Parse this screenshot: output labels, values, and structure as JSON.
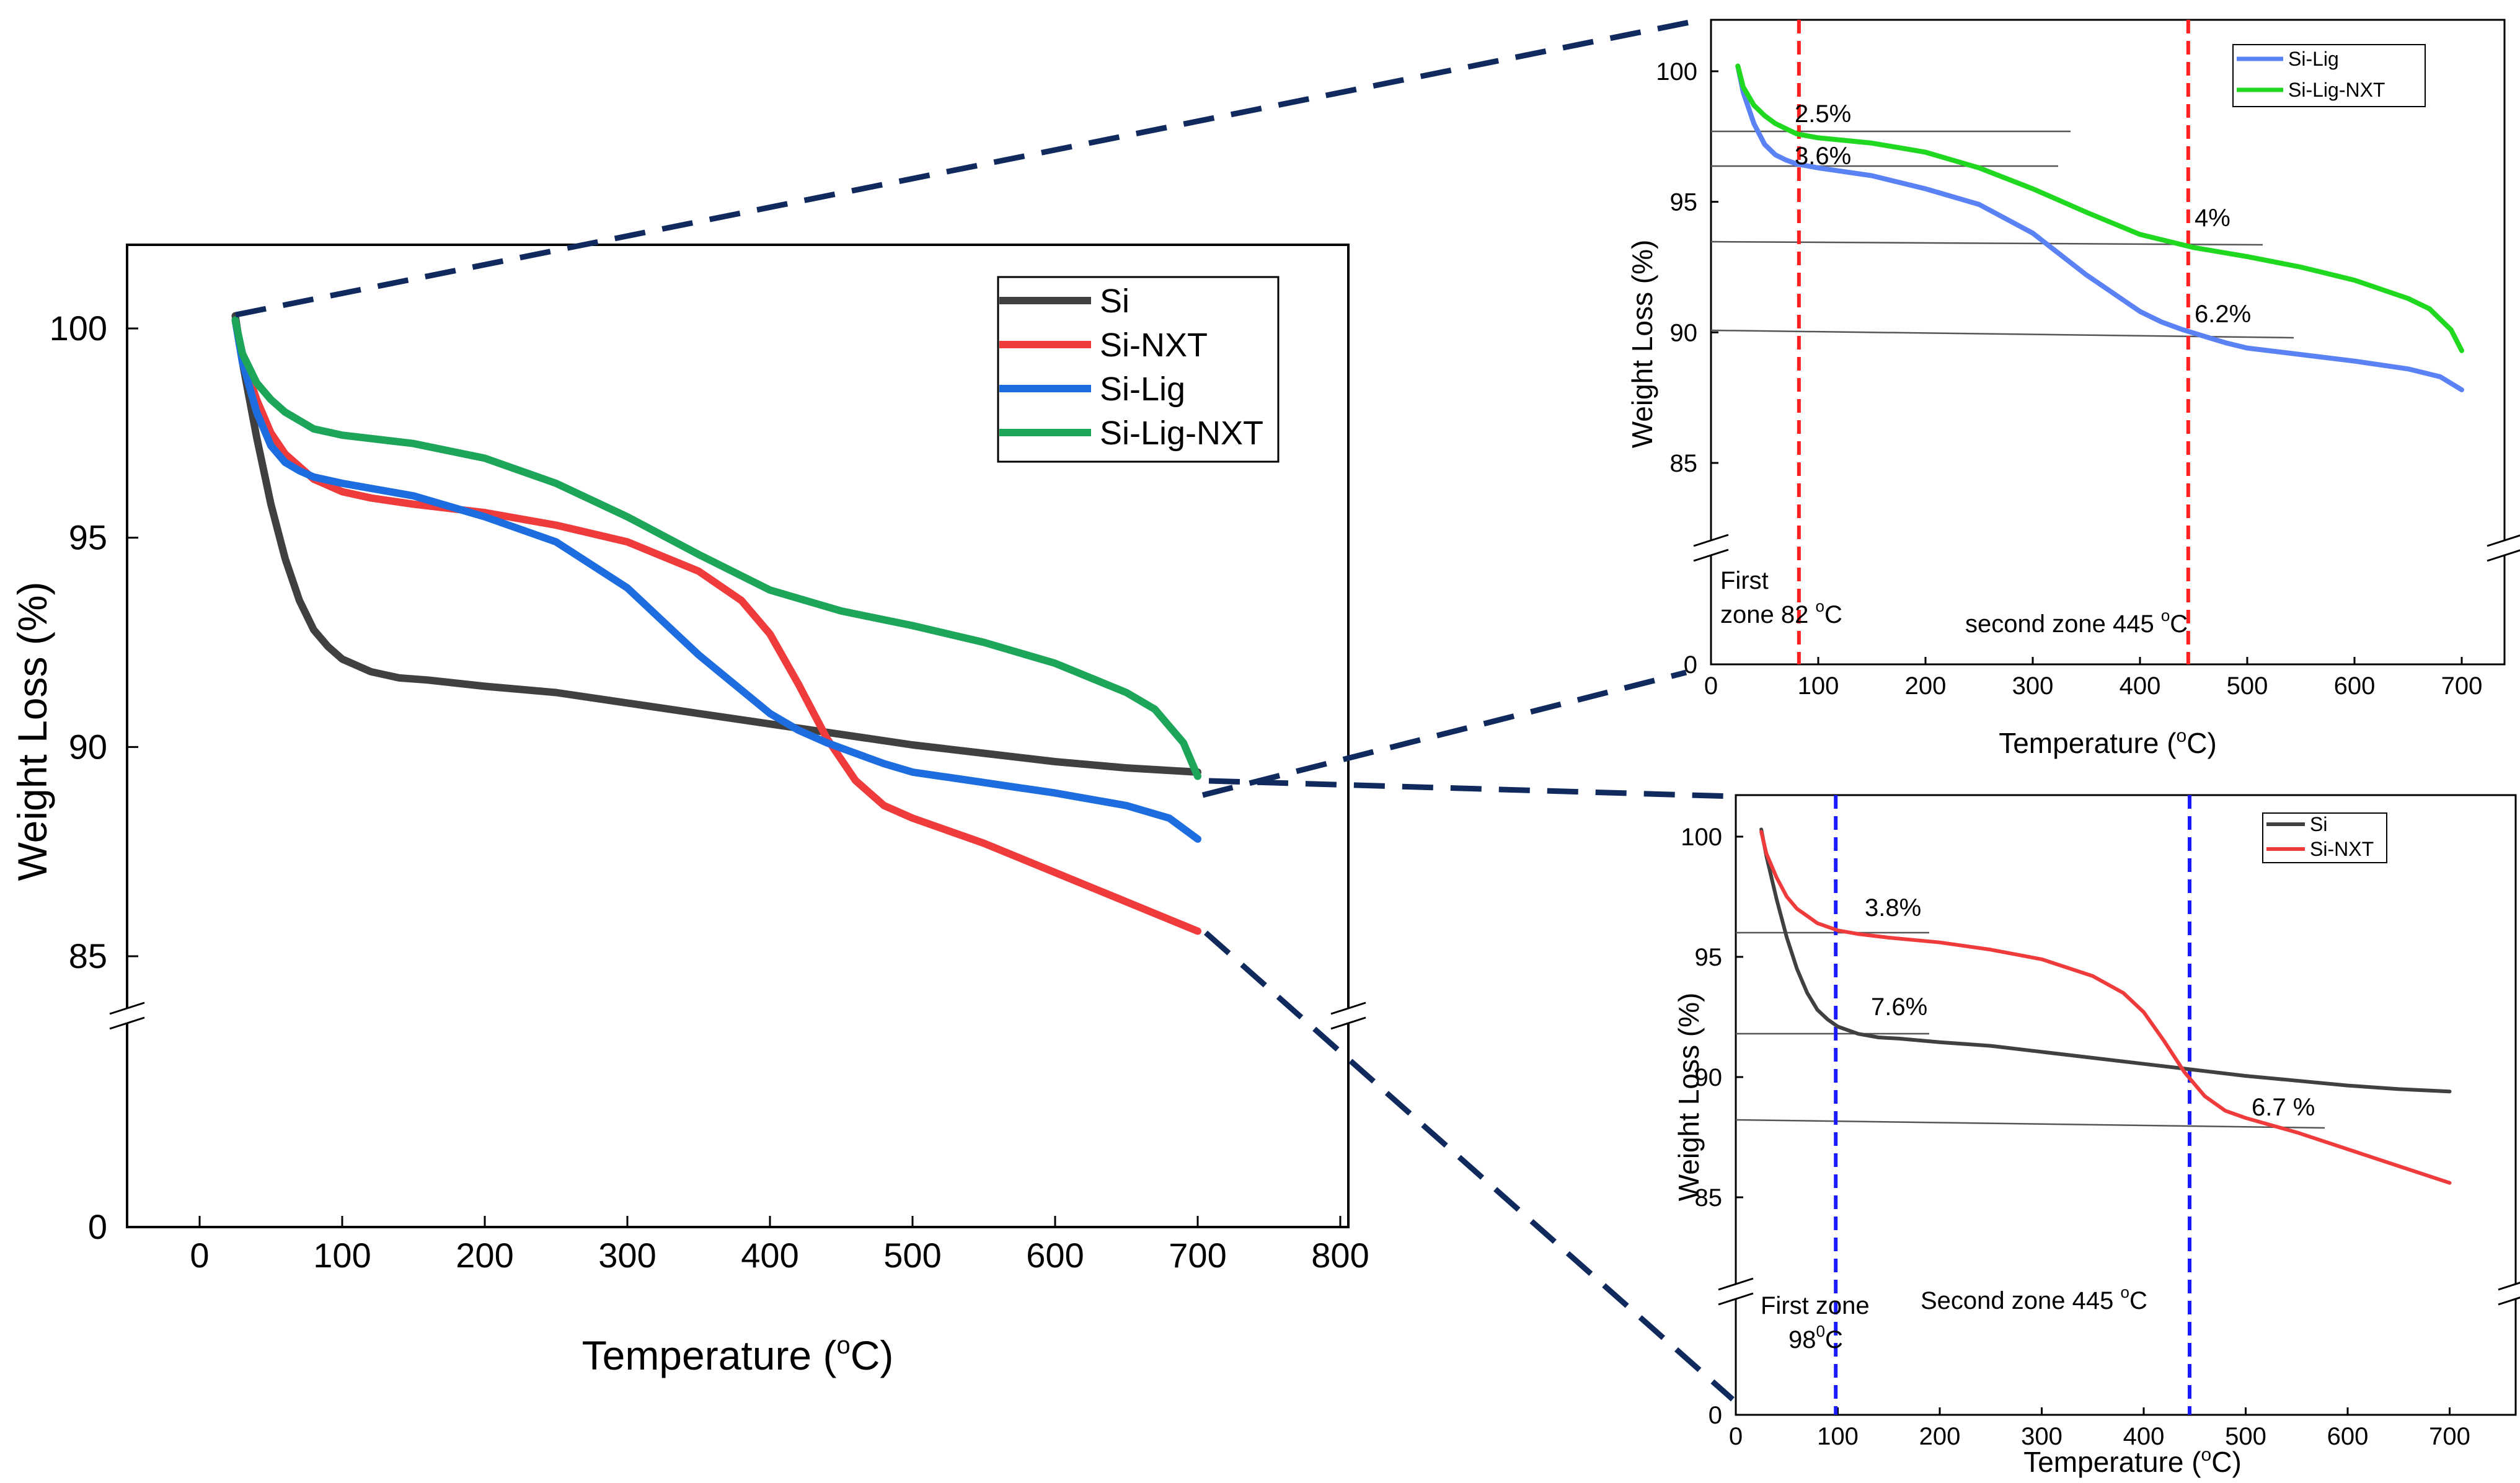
{
  "chart_data": [
    {
      "id": "main",
      "type": "line",
      "xlabel": "Temperature (°C)",
      "ylabel": "Weight Loss (%)",
      "xlim": [
        -50,
        800
      ],
      "xticks": [
        0,
        100,
        200,
        300,
        400,
        500,
        600,
        700,
        800
      ],
      "yticks": [
        0,
        85,
        90,
        95,
        100
      ],
      "axis_break": "between 0 and 85",
      "legend_position": "top-right",
      "series": [
        {
          "name": "Si",
          "color": "#404040",
          "x": [
            25,
            30,
            40,
            50,
            60,
            70,
            80,
            90,
            100,
            120,
            140,
            160,
            200,
            250,
            300,
            350,
            400,
            450,
            500,
            550,
            600,
            650,
            700
          ],
          "y": [
            100.3,
            99.2,
            97.4,
            95.8,
            94.5,
            93.5,
            92.8,
            92.4,
            92.1,
            91.8,
            91.65,
            91.6,
            91.45,
            91.3,
            91.05,
            90.8,
            90.55,
            90.3,
            90.05,
            89.85,
            89.65,
            89.5,
            89.4
          ]
        },
        {
          "name": "Si-NXT",
          "color": "#ef3b3b",
          "x": [
            25,
            30,
            40,
            50,
            60,
            70,
            80,
            100,
            120,
            150,
            200,
            250,
            300,
            350,
            380,
            400,
            420,
            440,
            460,
            480,
            500,
            550,
            600,
            650,
            700
          ],
          "y": [
            100.2,
            99.3,
            98.3,
            97.5,
            97.0,
            96.7,
            96.4,
            96.1,
            95.95,
            95.8,
            95.6,
            95.3,
            94.9,
            94.2,
            93.5,
            92.7,
            91.5,
            90.2,
            89.2,
            88.6,
            88.3,
            87.7,
            87.0,
            86.3,
            85.6
          ]
        },
        {
          "name": "Si-Lig",
          "color": "#1e6de0",
          "x": [
            25,
            30,
            40,
            50,
            60,
            70,
            80,
            100,
            150,
            200,
            250,
            300,
            350,
            400,
            420,
            440,
            460,
            480,
            500,
            550,
            600,
            650,
            680,
            700
          ],
          "y": [
            100.2,
            99.2,
            98.0,
            97.2,
            96.8,
            96.6,
            96.45,
            96.3,
            96.0,
            95.5,
            94.9,
            93.8,
            92.2,
            90.8,
            90.4,
            90.1,
            89.85,
            89.6,
            89.4,
            89.15,
            88.9,
            88.6,
            88.3,
            87.8
          ]
        },
        {
          "name": "Si-Lig-NXT",
          "color": "#1da65a",
          "x": [
            25,
            30,
            40,
            50,
            60,
            80,
            100,
            150,
            200,
            250,
            300,
            350,
            400,
            450,
            500,
            550,
            600,
            650,
            670,
            690,
            700
          ],
          "y": [
            100.2,
            99.4,
            98.7,
            98.3,
            98.0,
            97.6,
            97.45,
            97.25,
            96.9,
            96.3,
            95.5,
            94.6,
            93.75,
            93.25,
            92.9,
            92.5,
            92.0,
            91.3,
            90.9,
            90.1,
            89.3
          ]
        }
      ]
    },
    {
      "id": "inset-top",
      "type": "line",
      "xlabel": "Temperature (°C)",
      "ylabel": "Weight Loss (%)",
      "xlim": [
        0,
        740
      ],
      "xticks": [
        0,
        100,
        200,
        300,
        400,
        500,
        600,
        700
      ],
      "yticks": [
        0,
        85,
        90,
        95,
        100
      ],
      "axis_break": "between 0 and 85",
      "legend_position": "top-right",
      "series": [
        {
          "name": "Si-Lig",
          "color": "#5b82f5",
          "x": [
            25,
            30,
            40,
            50,
            60,
            70,
            80,
            100,
            150,
            200,
            250,
            300,
            350,
            400,
            420,
            440,
            460,
            480,
            500,
            550,
            600,
            650,
            680,
            700
          ],
          "y": [
            100.2,
            99.2,
            98.0,
            97.2,
            96.8,
            96.6,
            96.45,
            96.3,
            96.0,
            95.5,
            94.9,
            93.8,
            92.2,
            90.8,
            90.4,
            90.1,
            89.85,
            89.6,
            89.4,
            89.15,
            88.9,
            88.6,
            88.3,
            87.8
          ]
        },
        {
          "name": "Si-Lig-NXT",
          "color": "#1fd81f",
          "x": [
            25,
            30,
            40,
            50,
            60,
            80,
            100,
            150,
            200,
            250,
            300,
            350,
            400,
            450,
            500,
            550,
            600,
            650,
            670,
            690,
            700
          ],
          "y": [
            100.2,
            99.4,
            98.7,
            98.3,
            98.0,
            97.6,
            97.45,
            97.25,
            96.9,
            96.3,
            95.5,
            94.6,
            93.75,
            93.25,
            92.9,
            92.5,
            92.0,
            91.3,
            90.9,
            90.1,
            89.3
          ]
        }
      ],
      "vlines": [
        82,
        445
      ],
      "refline_labels": [
        "2.5%",
        "3.6%",
        "4%",
        "6.2%"
      ],
      "zone_labels": {
        "first_line1": "First",
        "first_line2": "zone 82 °C",
        "second": "second zone 445 °C"
      }
    },
    {
      "id": "inset-bottom",
      "type": "line",
      "xlabel": "Temperature (°C)",
      "ylabel": "Weight Loss (%)",
      "xlim": [
        0,
        760
      ],
      "xticks": [
        0,
        100,
        200,
        300,
        400,
        500,
        600,
        700
      ],
      "yticks": [
        0,
        85,
        90,
        95,
        100
      ],
      "axis_break": "between 0 and 85",
      "legend_position": "top-right",
      "series": [
        {
          "name": "Si",
          "color": "#404040",
          "x": [
            25,
            30,
            40,
            50,
            60,
            70,
            80,
            90,
            100,
            120,
            140,
            160,
            200,
            250,
            300,
            350,
            400,
            450,
            500,
            550,
            600,
            650,
            700
          ],
          "y": [
            100.3,
            99.2,
            97.4,
            95.8,
            94.5,
            93.5,
            92.8,
            92.4,
            92.1,
            91.8,
            91.65,
            91.6,
            91.45,
            91.3,
            91.05,
            90.8,
            90.55,
            90.3,
            90.05,
            89.85,
            89.65,
            89.5,
            89.4
          ]
        },
        {
          "name": "Si-NXT",
          "color": "#ef3b3b",
          "x": [
            25,
            30,
            40,
            50,
            60,
            70,
            80,
            100,
            120,
            150,
            200,
            250,
            300,
            350,
            380,
            400,
            420,
            440,
            460,
            480,
            500,
            550,
            600,
            650,
            700
          ],
          "y": [
            100.2,
            99.3,
            98.3,
            97.5,
            97.0,
            96.7,
            96.4,
            96.1,
            95.95,
            95.8,
            95.6,
            95.3,
            94.9,
            94.2,
            93.5,
            92.7,
            91.5,
            90.2,
            89.2,
            88.6,
            88.3,
            87.7,
            87.0,
            86.3,
            85.6
          ]
        }
      ],
      "vlines": [
        98,
        445
      ],
      "refline_labels": [
        "3.8%",
        "7.6%",
        "6.7 %"
      ],
      "zone_labels": {
        "first_line1": "First zone",
        "first_line2": "98°C",
        "second": "Second  zone 445 °C"
      }
    }
  ]
}
